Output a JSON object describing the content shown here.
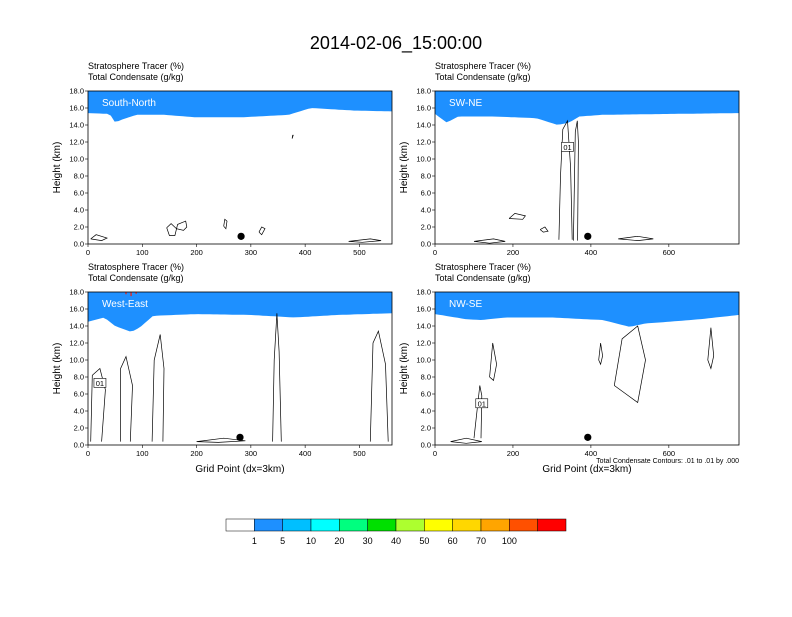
{
  "chart_data": {
    "type": "heatmap",
    "title": "2014-02-06_15:00:00",
    "panels": [
      {
        "name": "South-North",
        "subtitle_lines": [
          "Stratosphere Tracer   (%)",
          "Total Condensate   (g/kg)"
        ],
        "xlim": [
          0,
          560
        ],
        "xticks": [
          0,
          100,
          200,
          300,
          400,
          500
        ],
        "ylim": [
          0,
          18
        ],
        "yticks": [
          "0.0",
          "2.0",
          "4.0",
          "6.0",
          "8.0",
          "10.0",
          "12.0",
          "14.0",
          "16.0",
          "18.0"
        ],
        "ylabel": "Height (km)",
        "xlabel": "",
        "tracer_profile": [
          [
            0,
            15.4
          ],
          [
            40,
            15.3
          ],
          [
            50,
            14.3
          ],
          [
            65,
            14.7
          ],
          [
            90,
            15.2
          ],
          [
            140,
            15.2
          ],
          [
            200,
            14.9
          ],
          [
            280,
            14.9
          ],
          [
            370,
            15.2
          ],
          [
            410,
            16.0
          ],
          [
            490,
            15.7
          ],
          [
            560,
            15.6
          ]
        ],
        "contours": [
          [
            [
              145,
              1.9
            ],
            [
              150,
              1.0
            ],
            [
              160,
              1.0
            ],
            [
              165,
              2.3
            ],
            [
              180,
              2.7
            ],
            [
              182,
              2.0
            ],
            [
              176,
              1.6
            ],
            [
              163,
              1.8
            ],
            [
              153,
              2.4
            ],
            [
              145,
              1.9
            ]
          ],
          [
            [
              376,
              12.4
            ],
            [
              378,
              12.8
            ],
            [
              377,
              12.8
            ],
            [
              376,
              12.4
            ]
          ],
          [
            [
              250,
              2.1
            ],
            [
              254,
              1.8
            ],
            [
              256,
              2.7
            ],
            [
              252,
              2.9
            ],
            [
              250,
              2.1
            ]
          ],
          [
            [
              315,
              1.4
            ],
            [
              320,
              1.1
            ],
            [
              326,
              1.8
            ],
            [
              320,
              2.0
            ],
            [
              315,
              1.4
            ]
          ],
          [
            [
              5,
              0.6
            ],
            [
              15,
              1.1
            ],
            [
              35,
              0.7
            ],
            [
              25,
              0.4
            ],
            [
              5,
              0.6
            ]
          ],
          [
            [
              480,
              0.3
            ],
            [
              520,
              0.6
            ],
            [
              540,
              0.4
            ],
            [
              505,
              0.2
            ],
            [
              480,
              0.3
            ]
          ]
        ],
        "marker_x": 282,
        "contour_label": ""
      },
      {
        "name": "SW-NE",
        "subtitle_lines": [
          "Stratosphere Tracer   (%)",
          "Total Condensate   (g/kg)"
        ],
        "xlim": [
          0,
          780
        ],
        "xticks": [
          0,
          200,
          400,
          600
        ],
        "ylim": [
          0,
          18
        ],
        "yticks": [
          "0.0",
          "2.0",
          "4.0",
          "6.0",
          "8.0",
          "10.0",
          "12.0",
          "14.0",
          "16.0",
          "18.0"
        ],
        "ylabel": "Height (km)",
        "xlabel": "",
        "tracer_profile": [
          [
            0,
            15.3
          ],
          [
            30,
            14.3
          ],
          [
            60,
            15.0
          ],
          [
            150,
            15.0
          ],
          [
            260,
            14.8
          ],
          [
            315,
            14.0
          ],
          [
            345,
            14.3
          ],
          [
            370,
            15.0
          ],
          [
            430,
            15.2
          ],
          [
            600,
            15.3
          ],
          [
            780,
            15.4
          ]
        ],
        "contours": [
          [
            [
              318,
              0.5
            ],
            [
              322,
              8.0
            ],
            [
              328,
              13.5
            ],
            [
              340,
              14.5
            ],
            [
              348,
              9.0
            ],
            [
              352,
              0.5
            ]
          ],
          [
            [
              355,
              0.4
            ],
            [
              360,
              13.2
            ],
            [
              365,
              14.5
            ],
            [
              368,
              12.0
            ],
            [
              366,
              0.4
            ]
          ],
          [
            [
              190,
              3.0
            ],
            [
              205,
              3.6
            ],
            [
              232,
              3.3
            ],
            [
              225,
              2.9
            ],
            [
              190,
              3.0
            ]
          ],
          [
            [
              270,
              1.7
            ],
            [
              282,
              2.0
            ],
            [
              290,
              1.5
            ],
            [
              278,
              1.4
            ],
            [
              270,
              1.7
            ]
          ],
          [
            [
              100,
              0.3
            ],
            [
              150,
              0.6
            ],
            [
              180,
              0.3
            ],
            [
              140,
              0.1
            ],
            [
              100,
              0.3
            ]
          ],
          [
            [
              470,
              0.6
            ],
            [
              520,
              0.9
            ],
            [
              560,
              0.6
            ],
            [
              520,
              0.4
            ],
            [
              470,
              0.6
            ]
          ]
        ],
        "marker_x": 392,
        "contour_label": "01"
      },
      {
        "name": "West-East",
        "subtitle_lines": [
          "Stratosphere Tracer   (%)",
          "Total Condensate   (g/kg)"
        ],
        "xlim": [
          0,
          560
        ],
        "xticks": [
          0,
          100,
          200,
          300,
          400,
          500
        ],
        "ylim": [
          0,
          18
        ],
        "yticks": [
          "0.0",
          "2.0",
          "4.0",
          "6.0",
          "8.0",
          "10.0",
          "12.0",
          "14.0",
          "16.0",
          "18.0"
        ],
        "ylabel": "Height (km)",
        "xlabel": "Grid Point (dx=3km)",
        "tracer_profile": [
          [
            0,
            14.5
          ],
          [
            30,
            15.0
          ],
          [
            50,
            14.0
          ],
          [
            80,
            13.3
          ],
          [
            95,
            13.8
          ],
          [
            120,
            15.2
          ],
          [
            200,
            15.4
          ],
          [
            300,
            15.3
          ],
          [
            380,
            15.0
          ],
          [
            460,
            15.3
          ],
          [
            560,
            15.5
          ]
        ],
        "contours": [
          [
            [
              5,
              0.4
            ],
            [
              8,
              8.2
            ],
            [
              22,
              9.0
            ],
            [
              32,
              6.5
            ],
            [
              25,
              0.4
            ]
          ],
          [
            [
              60,
              0.4
            ],
            [
              60,
              9.0
            ],
            [
              70,
              10.4
            ],
            [
              82,
              7.0
            ],
            [
              78,
              0.4
            ]
          ],
          [
            [
              118,
              0.4
            ],
            [
              122,
              10.0
            ],
            [
              133,
              13.0
            ],
            [
              140,
              9.0
            ],
            [
              138,
              0.4
            ]
          ],
          [
            [
              340,
              0.4
            ],
            [
              343,
              10.0
            ],
            [
              348,
              15.5
            ],
            [
              352,
              11.0
            ],
            [
              356,
              0.4
            ]
          ],
          [
            [
              520,
              0.4
            ],
            [
              525,
              12.0
            ],
            [
              535,
              13.4
            ],
            [
              548,
              9.5
            ],
            [
              553,
              0.4
            ]
          ],
          [
            [
              200,
              0.4
            ],
            [
              250,
              0.8
            ],
            [
              290,
              0.5
            ],
            [
              240,
              0.3
            ],
            [
              200,
              0.4
            ]
          ]
        ],
        "marker_x": 280,
        "contour_label": "01"
      },
      {
        "name": "NW-SE",
        "subtitle_lines": [
          "Stratosphere Tracer   (%)",
          "Total Condensate   (g/kg)"
        ],
        "xlim": [
          0,
          780
        ],
        "xticks": [
          0,
          200,
          400,
          600
        ],
        "ylim": [
          0,
          18
        ],
        "yticks": [
          "0.0",
          "2.0",
          "4.0",
          "6.0",
          "8.0",
          "10.0",
          "12.0",
          "14.0",
          "16.0",
          "18.0"
        ],
        "ylabel": "Height (km)",
        "xlabel": "Grid Point (dx=3km)",
        "tracer_profile": [
          [
            0,
            15.4
          ],
          [
            80,
            14.8
          ],
          [
            120,
            14.7
          ],
          [
            180,
            15.0
          ],
          [
            300,
            15.0
          ],
          [
            430,
            14.7
          ],
          [
            500,
            13.9
          ],
          [
            540,
            14.3
          ],
          [
            600,
            14.5
          ],
          [
            680,
            14.8
          ],
          [
            780,
            15.3
          ]
        ],
        "contours": [
          [
            [
              100,
              0.8
            ],
            [
              115,
              7.0
            ],
            [
              120,
              5.8
            ],
            [
              118,
              0.8
            ]
          ],
          [
            [
              140,
              8.0
            ],
            [
              148,
              12.0
            ],
            [
              158,
              9.5
            ],
            [
              150,
              7.6
            ],
            [
              140,
              8.0
            ]
          ],
          [
            [
              420,
              10.0
            ],
            [
              425,
              12.0
            ],
            [
              430,
              10.5
            ],
            [
              425,
              9.5
            ],
            [
              420,
              10.0
            ]
          ],
          [
            [
              460,
              7.0
            ],
            [
              480,
              12.5
            ],
            [
              520,
              14.0
            ],
            [
              540,
              10.0
            ],
            [
              520,
              5.0
            ],
            [
              490,
              6.0
            ],
            [
              460,
              7.0
            ]
          ],
          [
            [
              700,
              10.0
            ],
            [
              708,
              13.8
            ],
            [
              715,
              10.5
            ],
            [
              708,
              9.0
            ],
            [
              700,
              10.0
            ]
          ],
          [
            [
              40,
              0.4
            ],
            [
              80,
              0.8
            ],
            [
              120,
              0.4
            ],
            [
              80,
              0.2
            ],
            [
              40,
              0.4
            ]
          ]
        ],
        "marker_x": 392,
        "contour_label": "01"
      }
    ],
    "colorbar": {
      "colors": [
        "#ffffff",
        "#1e90ff",
        "#00bfff",
        "#00ffff",
        "#00ff7f",
        "#00e000",
        "#adff2f",
        "#ffff00",
        "#ffd700",
        "#ffa500",
        "#ff5000",
        "#ff0000"
      ],
      "labels": [
        "1",
        "5",
        "10",
        "20",
        "30",
        "40",
        "50",
        "60",
        "70",
        "100"
      ]
    },
    "footnote": "Total Condensate Contours: .01 to .01 by .000"
  }
}
